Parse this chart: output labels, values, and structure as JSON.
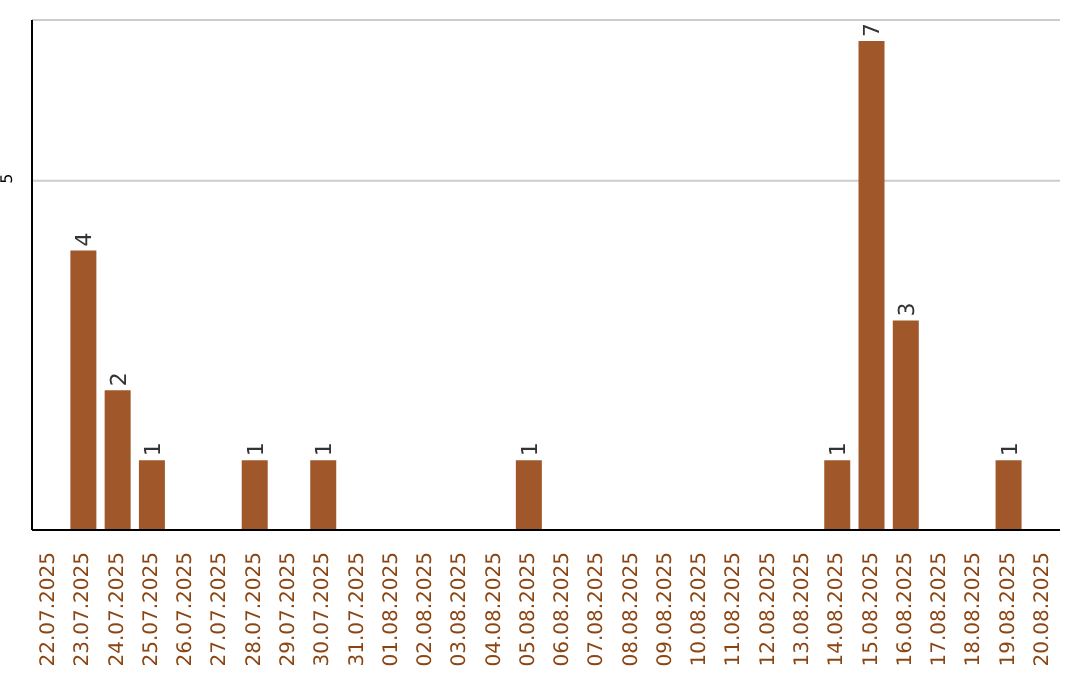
{
  "chart_data": {
    "type": "bar",
    "categories": [
      "22.07.2025",
      "23.07.2025",
      "24.07.2025",
      "25.07.2025",
      "26.07.2025",
      "27.07.2025",
      "28.07.2025",
      "29.07.2025",
      "30.07.2025",
      "31.07.2025",
      "01.08.2025",
      "02.08.2025",
      "03.08.2025",
      "04.08.2025",
      "05.08.2025",
      "06.08.2025",
      "07.08.2025",
      "08.08.2025",
      "09.08.2025",
      "10.08.2025",
      "11.08.2025",
      "12.08.2025",
      "13.08.2025",
      "14.08.2025",
      "15.08.2025",
      "16.08.2025",
      "17.08.2025",
      "18.08.2025",
      "19.08.2025",
      "20.08.2025"
    ],
    "values": [
      0,
      4,
      2,
      1,
      0,
      0,
      1,
      0,
      1,
      0,
      0,
      0,
      0,
      0,
      1,
      0,
      0,
      0,
      0,
      0,
      0,
      0,
      0,
      1,
      7,
      3,
      0,
      0,
      1,
      0
    ],
    "value_labels": [
      null,
      "4",
      "2",
      "1",
      null,
      null,
      "1",
      null,
      "1",
      null,
      null,
      null,
      null,
      null,
      "1",
      null,
      null,
      null,
      null,
      null,
      null,
      null,
      null,
      "1",
      "7",
      "3",
      null,
      null,
      "1",
      null
    ],
    "color": "#a0582a",
    "ylim": [
      0,
      7.3
    ],
    "yticks": [
      5
    ],
    "grid": "y"
  }
}
